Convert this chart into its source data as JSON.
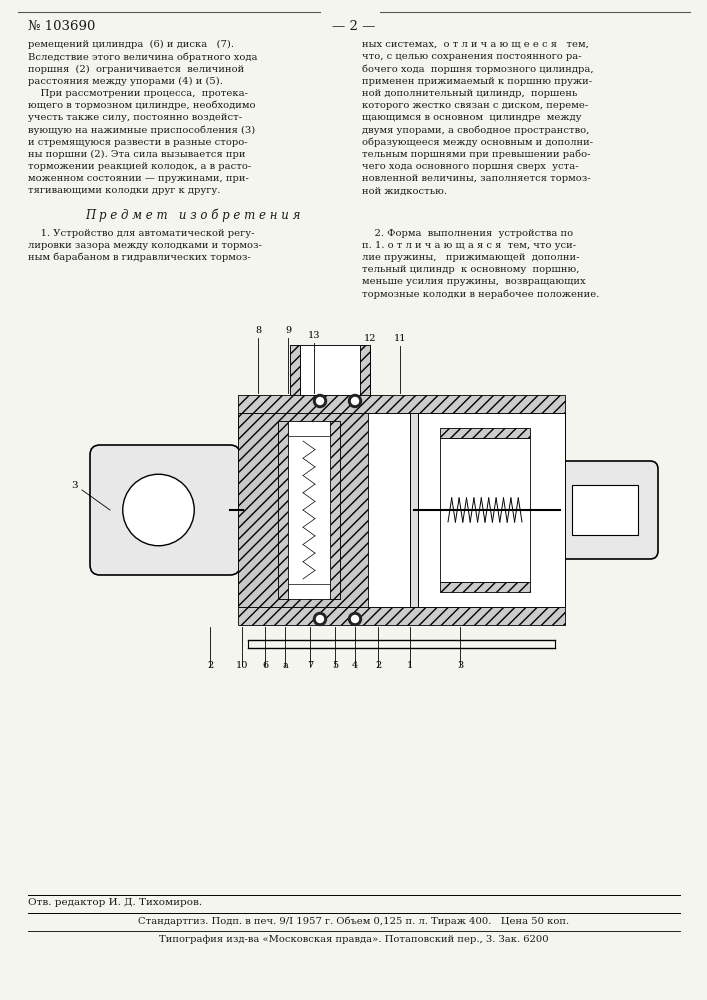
{
  "page_number": "103690",
  "page_label": "— 2 —",
  "background_color": "#f5f5f0",
  "text_color": "#1a1a1a",
  "left_column_text": [
    "ремещений цилиндра  (6) и диска   (7).",
    "Вследствие этого величина обратного хода",
    "поршня  (2)  ограничивается  величиной",
    "расстояния между упорами (4) и (5).",
    "    При рассмотрении процесса,  протека-",
    "ющего в тормозном цилиндре, необходимо",
    "учесть также силу, постоянно воздейст-",
    "вующую на нажимные приспособления (3)",
    "и стремящуюся развести в разные сторо-",
    "ны поршни (2). Эта сила вызывается при",
    "торможении реакцией колодок, а в расто-",
    "моженном состоянии — пружинами, при-",
    "тягивающими колодки друг к другу."
  ],
  "right_column_text": [
    "ных системах,  о т л и ч а ю щ е е с я   тем,",
    "что, с целью сохранения постоянного ра-",
    "бочего хода  поршня тормозного цилиндра,",
    "применен прижимаемый к поршню пружи-",
    "ной дополнительный цилиндр,  поршень",
    "которого жестко связан с диском, переме-",
    "щающимся в основном  цилиндре  между",
    "двумя упорами, а свободное пространство,",
    "образующееся между основным и дополни-",
    "тельным поршнями при превышении рабо-",
    "чего хода основного поршня сверх  уста-",
    "новленной величины, заполняется тормоз-",
    "ной жидкостью."
  ],
  "subject_header": "П р е д м е т   и з о б р е т е н и я",
  "left_patent_text": [
    "    1. Устройство для автоматической регу-",
    "лировки зазора между колодками и тормоз-",
    "ным барабаном в гидравлических тормоз-"
  ],
  "right_patent_text": [
    "    2. Форма  выполнения  устройства по",
    "п. 1. о т л и ч а ю щ а я с я  тем, что уси-",
    "лие пружины,   прижимающей  дополни-",
    "тельный цилиндр  к основному  поршню,",
    "меньше усилия пружины,  возвращающих",
    "тормозные колодки в нерабочее положение."
  ],
  "footer_editor": "Отв. редактор И. Д. Тихомиров.",
  "footer_line1": "Стандартгиз. Подп. в печ. 9/I 1957 г. Объем 0,125 п. л. Тираж 400.   Цена 50 коп.",
  "footer_line2": "Типография изд-ва «Московская правда». Потаповский пер., 3. Зак. 6200"
}
